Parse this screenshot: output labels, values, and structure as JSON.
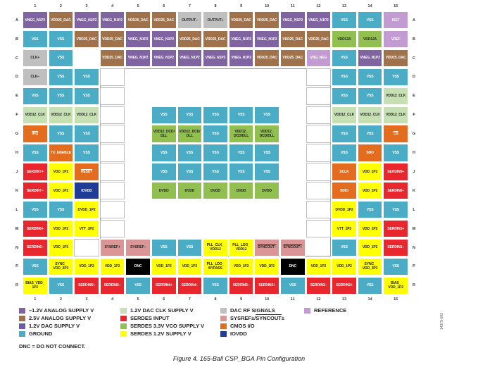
{
  "legend": [
    {
      "key": "N12",
      "label": "–1.2V ANALOG SUPPLY V",
      "color": "#8064a2"
    },
    {
      "key": "A25",
      "label": "2.5V ANALOG SUPPLY V",
      "color": "#a0724b"
    },
    {
      "key": "D12",
      "label": "1.2V DAC SUPPLY V",
      "color": "#6d5aa8"
    },
    {
      "key": "GND",
      "label": "GROUND",
      "color": "#4bacc6"
    },
    {
      "key": "CLK",
      "label": "1.2V DAC CLK SUPPLY V",
      "color": "#c6e0b4"
    },
    {
      "key": "SIN",
      "label": "SERDES INPUT",
      "color": "#e8262d"
    },
    {
      "key": "S33",
      "label": "SERDES 3.3V VCO SUPPLY V",
      "color": "#92c050"
    },
    {
      "key": "S12",
      "label": "SERDES 1.2V SUPPLY V",
      "color": "#ffff00"
    },
    {
      "key": "RF",
      "label": "DAC RF SIGNALS",
      "color": "#bfbfbf"
    },
    {
      "key": "SYS",
      "label": "SYSREF±/SYNCOUT±",
      "color": "#d99694"
    },
    {
      "key": "CMOS",
      "label": "CMOS I/O",
      "color": "#e46c1f"
    },
    {
      "key": "IOV",
      "label": "IOVDD",
      "color": "#1f3c96"
    },
    {
      "key": "REF",
      "label": "REFERENCE",
      "color": "#c39bd3"
    }
  ],
  "colors": {
    "N12": "#8064a2",
    "A25": "#a0724b",
    "D12": "#6d5aa8",
    "GND": "#4bacc6",
    "CLK": "#c6e0b4",
    "SIN": "#e8262d",
    "S33": "#92c050",
    "S12": "#ffff00",
    "RF": "#bfbfbf",
    "SYS": "#d99694",
    "CMOS": "#e46c1f",
    "IOV": "#1f3c96",
    "REF": "#c39bd3",
    "DNC": "#000000"
  },
  "columns": [
    "1",
    "2",
    "3",
    "4",
    "5",
    "6",
    "7",
    "8",
    "9",
    "10",
    "11",
    "12",
    "13",
    "14",
    "15"
  ],
  "rows": [
    "A",
    "B",
    "C",
    "D",
    "E",
    "F",
    "G",
    "H",
    "J",
    "K",
    "L",
    "M",
    "N",
    "P",
    "R"
  ],
  "pins": {
    "A": [
      [
        "VNEG_N1P2",
        "N12"
      ],
      [
        "VDD25_DAC",
        "A25"
      ],
      [
        "VNEG_N1P2",
        "N12"
      ],
      [
        "VNEG_N1P2",
        "N12"
      ],
      [
        "VDD25_DAC",
        "A25"
      ],
      [
        "VDD25_DAC",
        "A25"
      ],
      [
        "OUTPUT–",
        "RF"
      ],
      [
        "OUTPUT+",
        "RF"
      ],
      [
        "VDD25_DAC",
        "A25"
      ],
      [
        "VDD25_DAC",
        "A25"
      ],
      [
        "VNEG_N1P2",
        "N12"
      ],
      [
        "VNEG_N1P2",
        "N12"
      ],
      [
        "VSS",
        "GND"
      ],
      [
        "VSS",
        "GND"
      ],
      [
        "ISET",
        "REF"
      ]
    ],
    "B": [
      [
        "VSS",
        "GND"
      ],
      [
        "VSS",
        "GND"
      ],
      [
        "VDD25_DAC",
        "A25"
      ],
      [
        "VDD25_DAC",
        "A25"
      ],
      [
        "VNEG_N1P2",
        "N12"
      ],
      [
        "VNEG_N1P2",
        "N12"
      ],
      [
        "VDD25_DAC",
        "A25"
      ],
      [
        "VDD25_DAC",
        "A25"
      ],
      [
        "VNEG_N1P2",
        "N12"
      ],
      [
        "VNEG_N1P2",
        "N12"
      ],
      [
        "VDD25_DAC",
        "A25"
      ],
      [
        "VDD25_DAC",
        "A25"
      ],
      [
        "VDD12A",
        "S33"
      ],
      [
        "VDD12A",
        "S33"
      ],
      [
        "VREF",
        "REF"
      ]
    ],
    "C": [
      [
        "CLK+",
        "RF"
      ],
      [
        "VSS",
        "GND"
      ],
      null,
      [
        "VDD25_DAC",
        "A25"
      ],
      [
        "VNEG_N1P2",
        "N12"
      ],
      [
        "VNEG_N1P2",
        "N12"
      ],
      [
        "VNEG_N1P2",
        "N12"
      ],
      [
        "VNEG_N1P2",
        "N12"
      ],
      [
        "VNEG_N1P2",
        "N12"
      ],
      [
        "VDD25_DAC",
        "A25"
      ],
      [
        "VDD25_DAC",
        "A25"
      ],
      [
        "VBG_NEG",
        "REF"
      ],
      [
        "VSS",
        "GND"
      ],
      [
        "VNEG_N1P2",
        "N12"
      ],
      [
        "VDD25_DAC",
        "A25"
      ]
    ],
    "D": [
      [
        "CLK–",
        "RF"
      ],
      [
        "VSS",
        "GND"
      ],
      [
        "VSS",
        "GND"
      ],
      "",
      null,
      null,
      null,
      null,
      null,
      null,
      null,
      "",
      [
        "VSS",
        "GND"
      ],
      [
        "VSS",
        "GND"
      ],
      [
        "VSS",
        "GND"
      ]
    ],
    "E": [
      [
        "VSS",
        "GND"
      ],
      [
        "VSS",
        "GND"
      ],
      [
        "VSS",
        "GND"
      ],
      "",
      null,
      null,
      null,
      null,
      null,
      null,
      null,
      "",
      [
        "VSS",
        "GND"
      ],
      [
        "VSS",
        "GND"
      ],
      [
        "VDD12_CLK",
        "CLK"
      ]
    ],
    "F": [
      [
        "VDD12_CLK",
        "CLK"
      ],
      [
        "VDD12_CLK",
        "CLK"
      ],
      [
        "VDD12_CLK",
        "CLK"
      ],
      "",
      null,
      [
        "VSS",
        "GND"
      ],
      [
        "VSS",
        "GND"
      ],
      [
        "VSS",
        "GND"
      ],
      [
        "VSS",
        "GND"
      ],
      [
        "VSS",
        "GND"
      ],
      null,
      "",
      [
        "VDD12_CLK",
        "CLK"
      ],
      [
        "VDD12_CLK",
        "CLK"
      ],
      [
        "VDD12_CLK",
        "CLK"
      ]
    ],
    "G": [
      [
        "IRQ",
        "CMOS",
        "ovl"
      ],
      [
        "VSS",
        "GND"
      ],
      [
        "VSS",
        "GND"
      ],
      "",
      null,
      [
        "VDD12_DCD/\nDLL",
        "S33"
      ],
      [
        "VDD12_DCD/\nDLL",
        "S33"
      ],
      [
        "VSS",
        "GND"
      ],
      [
        "VDD12_\nDCD/DLL",
        "S33"
      ],
      [
        "VDD12_\nDCD/DLL",
        "S33"
      ],
      null,
      "",
      [
        "VSS",
        "GND"
      ],
      [
        "VSS",
        "GND"
      ],
      [
        "CS",
        "CMOS",
        "ovl"
      ]
    ],
    "H": [
      [
        "VSS",
        "GND"
      ],
      [
        "TX_ENABLE",
        "CMOS"
      ],
      [
        "VSS",
        "GND"
      ],
      "",
      null,
      [
        "VSS",
        "GND"
      ],
      [
        "VSS",
        "GND"
      ],
      [
        "VSS",
        "GND"
      ],
      [
        "VSS",
        "GND"
      ],
      [
        "VSS",
        "GND"
      ],
      null,
      "",
      [
        "VSS",
        "GND"
      ],
      [
        "SDO",
        "CMOS"
      ],
      [
        "VSS",
        "GND"
      ]
    ],
    "J": [
      [
        "SERDIN7+",
        "SIN"
      ],
      [
        "VDD_1P2",
        "S12"
      ],
      [
        "RESET",
        "CMOS",
        "ovl"
      ],
      "",
      null,
      [
        "VSS",
        "GND"
      ],
      [
        "VSS",
        "GND"
      ],
      [
        "VSS",
        "GND"
      ],
      [
        "VSS",
        "GND"
      ],
      [
        "VSS",
        "GND"
      ],
      null,
      "",
      [
        "SCLK",
        "CMOS"
      ],
      [
        "VDD_1P2",
        "S12"
      ],
      [
        "SERDIN0+",
        "SIN"
      ]
    ],
    "K": [
      [
        "SERDIN7–",
        "SIN"
      ],
      [
        "VDD_1P2",
        "S12"
      ],
      [
        "IOVDD",
        "IOV"
      ],
      "",
      null,
      [
        "DVDD",
        "S33"
      ],
      [
        "DVDD",
        "S33"
      ],
      [
        "DVDD",
        "S33"
      ],
      [
        "DVDD",
        "S33"
      ],
      [
        "DVDD",
        "S33"
      ],
      null,
      "",
      [
        "SDIO",
        "CMOS"
      ],
      [
        "VDD_1P2",
        "S12"
      ],
      [
        "SERDIN0–",
        "SIN"
      ]
    ],
    "L": [
      [
        "VSS",
        "GND"
      ],
      [
        "VSS",
        "GND"
      ],
      [
        "DVDD_1P2",
        "S12"
      ],
      "",
      null,
      null,
      null,
      null,
      null,
      null,
      null,
      "",
      [
        "DVDD_1P2",
        "S12"
      ],
      [
        "VSS",
        "GND"
      ],
      [
        "VSS",
        "GND"
      ]
    ],
    "M": [
      [
        "SERDIN6+",
        "SIN"
      ],
      [
        "VDD_1P2",
        "S12"
      ],
      [
        "VTT_1P2",
        "S12"
      ],
      "",
      null,
      null,
      null,
      null,
      null,
      null,
      null,
      "",
      [
        "VTT_1P2",
        "S12"
      ],
      [
        "VDD_1P2",
        "S12"
      ],
      [
        "SERDIN1+",
        "SIN"
      ]
    ],
    "N": [
      [
        "SERDIN6–",
        "SIN"
      ],
      [
        "VDD_1P2",
        "S12"
      ],
      "",
      [
        "SYSREF+",
        "SYS"
      ],
      [
        "SYSREF–",
        "SYS"
      ],
      [
        "VSS",
        "GND"
      ],
      [
        "VSS",
        "GND"
      ],
      [
        "PLL_CLK_\nVDD12",
        "S12"
      ],
      [
        "PLL_LDO_\nVDD12",
        "S12"
      ],
      [
        "SYNCOUT–",
        "SYS",
        "ovl"
      ],
      [
        "SYNCOUT+",
        "SYS",
        "ovl"
      ],
      null,
      [
        "VSS",
        "GND"
      ],
      [
        "VDD_1P2",
        "S12"
      ],
      [
        "SERDIN1–",
        "SIN"
      ]
    ],
    "P": [
      [
        "VSS",
        "GND"
      ],
      [
        "SYNC_\nVDD_3P3",
        "S12"
      ],
      [
        "VDD_1P2",
        "S12"
      ],
      [
        "VDD_1P2",
        "S12"
      ],
      [
        "DNC",
        "DNC"
      ],
      [
        "VDD_1P2",
        "S12"
      ],
      [
        "VDD_1P2",
        "S12"
      ],
      [
        "PLL_LDO_\nBYPASS",
        "S12"
      ],
      [
        "VDD_1P2",
        "S12"
      ],
      [
        "VDD_1P2",
        "S12"
      ],
      [
        "DNC",
        "DNC"
      ],
      [
        "VDD_1P2",
        "S12"
      ],
      [
        "VDD_1P2",
        "S12"
      ],
      [
        "SYNC_\nVDD_3P3",
        "S12"
      ],
      [
        "VSS",
        "GND"
      ]
    ],
    "R": [
      [
        "BIAS_VDD_\n1P2",
        "S12"
      ],
      [
        "VSS",
        "GND"
      ],
      [
        "SERDIN5+",
        "SIN"
      ],
      [
        "SERDIN5–",
        "SIN"
      ],
      [
        "VSS",
        "GND"
      ],
      [
        "SERDIN4+",
        "SIN"
      ],
      [
        "SERDIN4–",
        "SIN"
      ],
      [
        "VSS",
        "GND"
      ],
      [
        "SERDIN3–",
        "SIN"
      ],
      [
        "SERDIN3+",
        "SIN"
      ],
      [
        "VSS",
        "GND"
      ],
      [
        "SERDIN2–",
        "SIN"
      ],
      [
        "SERDIN2+",
        "SIN"
      ],
      [
        "VSS",
        "GND"
      ],
      [
        "BIAS_\nVDD_1P2",
        "S12"
      ]
    ]
  },
  "note": "DNC = DO NOT CONNECT.",
  "caption": "Figure 4. 165-Ball CSP_BGA Pin Configuration",
  "figure_id": "14379-003"
}
